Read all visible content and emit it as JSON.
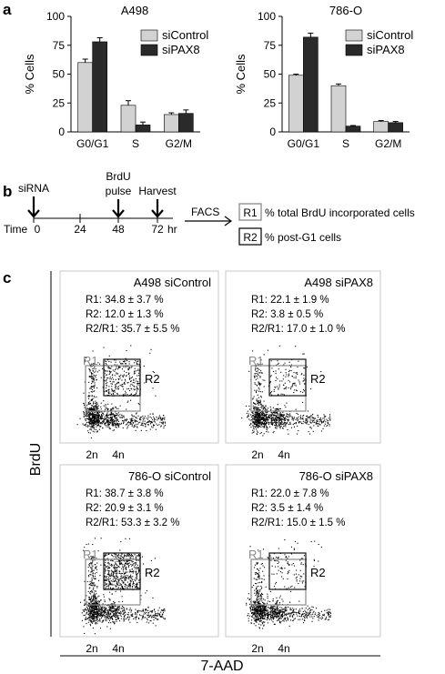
{
  "panels": {
    "a": "a",
    "b": "b",
    "c": "c"
  },
  "colors": {
    "siControl": "#d2d2d2",
    "siPAX8": "#2a2a2a",
    "gate_R1": "#8a8a8a",
    "gate_R2": "#111111",
    "axis": "#000000"
  },
  "chart_data": [
    {
      "type": "bar",
      "title": "A498",
      "ylabel": "% Cells",
      "xlabel": "",
      "ylim": [
        0,
        100
      ],
      "yticks": [
        "0",
        "25",
        "50",
        "75",
        "100"
      ],
      "categories": [
        "G0/G1",
        "S",
        "G2/M"
      ],
      "legend_position": "top-right",
      "series": [
        {
          "name": "siControl",
          "values": [
            60,
            23,
            15
          ],
          "errors": [
            3,
            4,
            1.5
          ]
        },
        {
          "name": "siPAX8",
          "values": [
            78,
            6,
            16
          ],
          "errors": [
            3.5,
            2.5,
            3
          ]
        }
      ]
    },
    {
      "type": "bar",
      "title": "786-O",
      "ylabel": "% Cells",
      "xlabel": "",
      "ylim": [
        0,
        100
      ],
      "yticks": [
        "0",
        "25",
        "50",
        "75",
        "100"
      ],
      "categories": [
        "G0/G1",
        "S",
        "G2/M"
      ],
      "legend_position": "top-right",
      "series": [
        {
          "name": "siControl",
          "values": [
            49,
            40,
            9
          ],
          "errors": [
            1,
            1.5,
            0.8
          ]
        },
        {
          "name": "siPAX8",
          "values": [
            82,
            5,
            8
          ],
          "errors": [
            3.5,
            0.5,
            1
          ]
        }
      ]
    },
    {
      "type": "scatter",
      "title": "A498 siControl",
      "stats": [
        "R1: 34.8 ± 3.7 %",
        "R2: 12.0 ± 1.3 %",
        "R2/R1: 35.7 ± 5.5 %"
      ],
      "gates": [
        "R1",
        "R2"
      ]
    },
    {
      "type": "scatter",
      "title": "A498 siPAX8",
      "stats": [
        "R1: 22.1 ± 1.9 %",
        "R2: 3.8 ± 0.5 %",
        "R2/R1: 17.0 ± 1.0 %"
      ],
      "gates": [
        "R1",
        "R2"
      ]
    },
    {
      "type": "scatter",
      "title": "786-O siControl",
      "stats": [
        "R1: 38.7 ± 3.8 %",
        "R2: 20.9 ± 3.1 %",
        "R2/R1: 53.3 ± 3.2 %"
      ],
      "gates": [
        "R1",
        "R2"
      ]
    },
    {
      "type": "scatter",
      "title": "786-O siPAX8",
      "stats": [
        "R1: 22.0 ± 7.8 %",
        "R2: 3.5 ± 1.4 %",
        "R2/R1: 15.0 ± 1.5 %"
      ],
      "gates": [
        "R1",
        "R2"
      ]
    }
  ],
  "timeline": {
    "events": [
      "siRNA",
      "BrdU",
      "pulse",
      "Harvest"
    ],
    "time_label": "Time",
    "ticks": [
      "0",
      "24",
      "48",
      "72"
    ],
    "unit": "hr",
    "facs": "FACS",
    "legend": [
      {
        "gate": "R1",
        "text": "% total BrdU incorporated cells"
      },
      {
        "gate": "R2",
        "text": "% post-G1 cells"
      }
    ]
  },
  "facs_axes": {
    "ylabel": "BrdU",
    "xlabel": "7-AAD",
    "dna_ticks": [
      "2n",
      "4n"
    ]
  }
}
